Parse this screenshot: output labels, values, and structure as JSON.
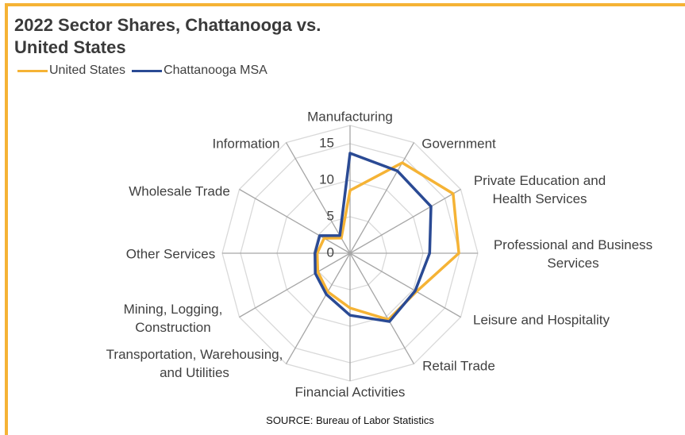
{
  "chart_data": {
    "type": "radar",
    "title": "2022 Sector Shares, Chattanooga vs. United States",
    "source": "SOURCE: Bureau of Labor Statistics",
    "categories": [
      "Manufacturing",
      "Government",
      "Private Education and Health Services",
      "Professional and Business Services",
      "Leisure and Hospitality",
      "Retail Trade",
      "Financial Activities",
      "Transportation, Warehousing, and Utilities",
      "Mining, Logging, Construction",
      "Other Services",
      "Wholesale Trade",
      "Information"
    ],
    "series": [
      {
        "name": "United States",
        "color": "#f5b335",
        "values": [
          8.6,
          14.3,
          16.3,
          14.9,
          10.5,
          10.5,
          7.5,
          6.1,
          5.1,
          4.5,
          4.1,
          2.4
        ]
      },
      {
        "name": "Chattanooga MSA",
        "color": "#2a4a94",
        "values": [
          13.7,
          13.0,
          12.8,
          10.9,
          10.3,
          10.8,
          8.5,
          6.5,
          5.5,
          4.8,
          4.8,
          2.8
        ]
      }
    ],
    "ylim": [
      0,
      17.5
    ],
    "yticks": [
      0,
      5,
      10,
      15
    ],
    "grid": true,
    "legend": "top-left"
  }
}
